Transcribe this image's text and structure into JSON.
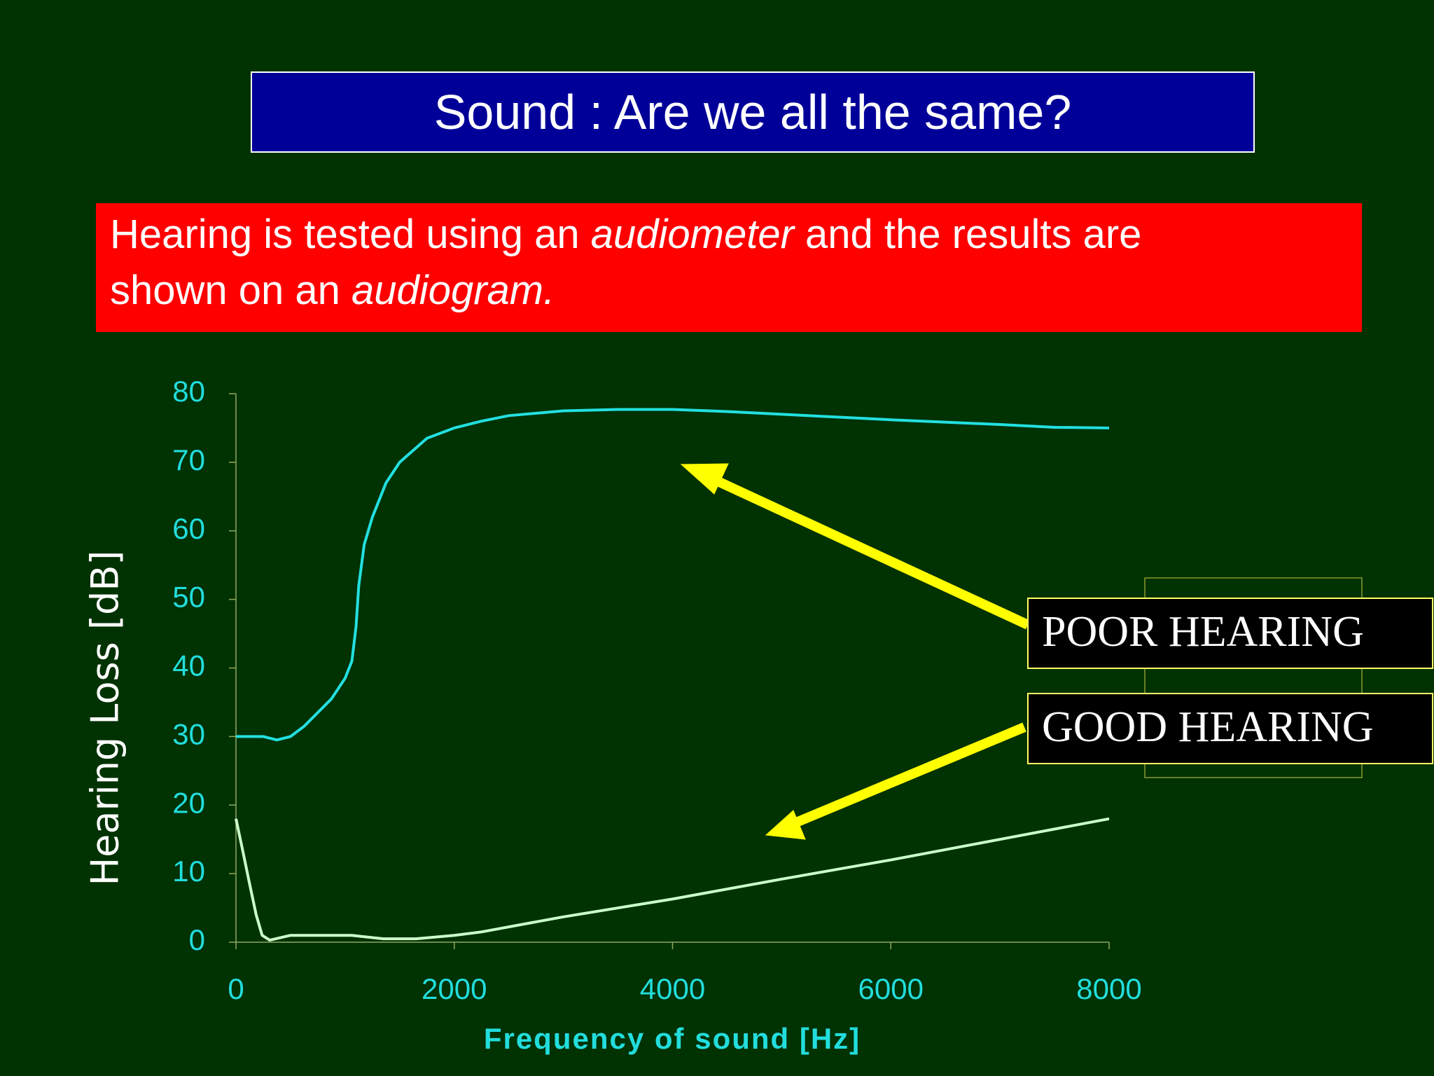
{
  "title": "Sound : Are we all the same?",
  "intro": {
    "line1": [
      "Hearing is tested using an ",
      "audiometer",
      " and the results are"
    ],
    "line2": [
      "shown on an ",
      "audiogram."
    ]
  },
  "chart_data": {
    "type": "line",
    "x_label": "Frequency of sound [Hz]",
    "y_label": "Hearing Loss [dB]",
    "xlim": [
      0,
      8000
    ],
    "xticks": [
      0,
      2000,
      4000,
      6000,
      8000
    ],
    "ylim": [
      0,
      80
    ],
    "yticks": [
      0,
      10,
      20,
      30,
      40,
      50,
      60,
      70,
      80
    ],
    "grid": false,
    "series": [
      {
        "name": "POOR HEARING",
        "color": "#22e0e0",
        "x": [
          0,
          250,
          375,
          500,
          625,
          750,
          875,
          1000,
          1062,
          1100,
          1125,
          1150,
          1175,
          1250,
          1375,
          1500,
          1750,
          2000,
          2250,
          2500,
          3000,
          3500,
          4000,
          4500,
          5000,
          6000,
          7000,
          7500,
          8000
        ],
        "values": [
          30,
          30,
          29.5,
          30,
          31.5,
          33.5,
          35.5,
          38.5,
          41,
          46,
          52,
          55,
          58,
          62,
          67,
          70,
          73.5,
          75,
          76,
          76.8,
          77.5,
          77.7,
          77.7,
          77.4,
          77,
          76.2,
          75.5,
          75.1,
          75
        ]
      },
      {
        "name": "GOOD HEARING",
        "color": "#ccffcc",
        "x": [
          0,
          60,
          125,
          185,
          240,
          310,
          500,
          1060,
          1350,
          1650,
          2000,
          2250,
          3000,
          4000,
          5000,
          6000,
          7000,
          8000
        ],
        "values": [
          18,
          13.5,
          8.5,
          4,
          1,
          0.3,
          1,
          1,
          0.5,
          0.5,
          1,
          1.5,
          3.7,
          6.3,
          9.2,
          12,
          15,
          18
        ]
      }
    ]
  }
}
